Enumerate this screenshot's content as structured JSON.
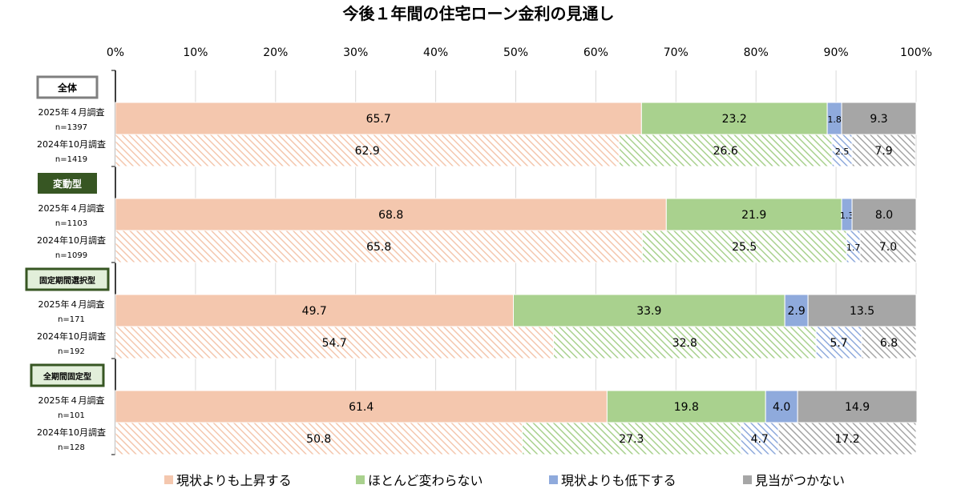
{
  "chart_data": {
    "type": "bar",
    "orientation": "horizontal",
    "stacked": "percent",
    "title": "今後１年間の住宅ローン金利の見通し",
    "xlim": [
      0,
      100
    ],
    "x_ticks": [
      "0%",
      "10%",
      "20%",
      "30%",
      "40%",
      "50%",
      "60%",
      "70%",
      "80%",
      "90%",
      "100%"
    ],
    "grid": true,
    "legend_position": "bottom",
    "series": [
      {
        "name": "現状よりも上昇する",
        "color": "#f4c7ae"
      },
      {
        "name": "ほとんど変わらない",
        "color": "#a9d18e"
      },
      {
        "name": "現状よりも低下する",
        "color": "#8faadc"
      },
      {
        "name": "見当がつかない",
        "color": "#a6a6a6"
      }
    ],
    "groups": [
      {
        "label": "全体",
        "rows": [
          {
            "survey": "2025年４月調査",
            "n": "n=1397",
            "style": "solid",
            "values": [
              65.7,
              23.2,
              1.8,
              9.3
            ],
            "labels": [
              "65.7",
              "23.2",
              "1.8",
              "9.3"
            ]
          },
          {
            "survey": "2024年10月調査",
            "n": "n=1419",
            "style": "hatched",
            "values": [
              62.9,
              26.6,
              2.5,
              7.9
            ],
            "labels": [
              "62.9",
              "26.6",
              "2.5",
              "7.9"
            ]
          }
        ]
      },
      {
        "label": "変動型",
        "rows": [
          {
            "survey": "2025年４月調査",
            "n": "n=1103",
            "style": "solid",
            "values": [
              68.8,
              21.9,
              1.3,
              8.0
            ],
            "labels": [
              "68.8",
              "21.9",
              "1.3",
              "8.0"
            ]
          },
          {
            "survey": "2024年10月調査",
            "n": "n=1099",
            "style": "hatched",
            "values": [
              65.8,
              25.5,
              1.7,
              7.0
            ],
            "labels": [
              "65.8",
              "25.5",
              "1.7",
              "7.0"
            ]
          }
        ]
      },
      {
        "label": "固定期間選択型",
        "rows": [
          {
            "survey": "2025年４月調査",
            "n": "n=171",
            "style": "solid",
            "values": [
              49.7,
              33.9,
              2.9,
              13.5
            ],
            "labels": [
              "49.7",
              "33.9",
              "2.9",
              "13.5"
            ]
          },
          {
            "survey": "2024年10月調査",
            "n": "n=192",
            "style": "hatched",
            "values": [
              54.7,
              32.8,
              5.7,
              6.8
            ],
            "labels": [
              "54.7",
              "32.8",
              "5.7",
              "6.8"
            ]
          }
        ]
      },
      {
        "label": "全期間固定型",
        "rows": [
          {
            "survey": "2025年４月調査",
            "n": "n=101",
            "style": "solid",
            "values": [
              61.4,
              19.8,
              4.0,
              14.9
            ],
            "labels": [
              "61.4",
              "19.8",
              "4.0",
              "14.9"
            ]
          },
          {
            "survey": "2024年10月調査",
            "n": "n=128",
            "style": "hatched",
            "values": [
              50.8,
              27.3,
              4.7,
              17.2
            ],
            "labels": [
              "50.8",
              "27.3",
              "4.7",
              "17.2"
            ]
          }
        ]
      }
    ]
  }
}
